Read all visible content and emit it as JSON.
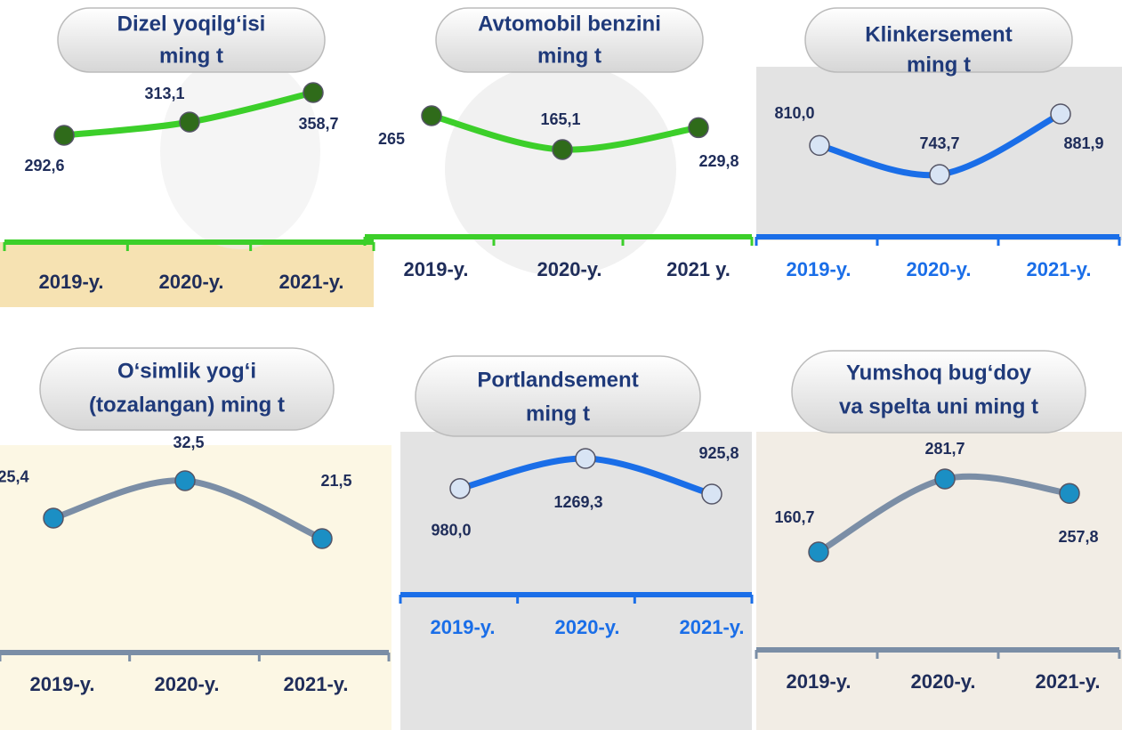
{
  "chart_data": [
    {
      "type": "line",
      "title": [
        "Dizel yoqilg‘isi",
        "ming t"
      ],
      "categories": [
        "2019-y.",
        "2020-y.",
        "2021-y."
      ],
      "values": [
        292.6,
        313.1,
        358.7
      ],
      "value_labels": [
        "292,6",
        "313,1",
        "358,7"
      ],
      "color": "#3ccf2a",
      "marker_color": "#2f6b1a",
      "category_color": "#1f2d5a"
    },
    {
      "type": "line",
      "title": [
        "Avtomobil benzini",
        "ming t"
      ],
      "categories": [
        "2019-y.",
        "2020-y.",
        "2021 y."
      ],
      "values": [
        265,
        165.1,
        229.8
      ],
      "value_labels": [
        "265",
        "165,1",
        "229,8"
      ],
      "color": "#3ccf2a",
      "marker_color": "#2f6b1a",
      "category_color": "#1f2d5a"
    },
    {
      "type": "line",
      "title": [
        "Klinkersement",
        "ming t"
      ],
      "categories": [
        "2019-y.",
        "2020-y.",
        "2021-y."
      ],
      "values": [
        810.0,
        743.7,
        881.9
      ],
      "value_labels": [
        "810,0",
        "743,7",
        "881,9"
      ],
      "color": "#1a6ee8",
      "marker_color": "#d8e4f4",
      "category_color": "#1a6ee8"
    },
    {
      "type": "line",
      "title": [
        "O‘simlik yog‘i",
        "(tozalangan) ming t"
      ],
      "categories": [
        "2019-y.",
        "2020-y.",
        "2021-y."
      ],
      "values": [
        25.4,
        32.5,
        21.5
      ],
      "value_labels": [
        "25,4",
        "32,5",
        "21,5"
      ],
      "color": "#7b8ea6",
      "marker_color": "#1b8fc4",
      "category_color": "#1f2d5a"
    },
    {
      "type": "line",
      "title": [
        "Portlandsement",
        "ming t"
      ],
      "categories": [
        "2019-y.",
        "2020-y.",
        "2021-y."
      ],
      "values": [
        980.0,
        1269.3,
        925.8
      ],
      "value_labels": [
        "980,0",
        "1269,3",
        "925,8"
      ],
      "color": "#1a6ee8",
      "marker_color": "#d8e4f4",
      "category_color": "#1a6ee8"
    },
    {
      "type": "line",
      "title": [
        "Yumshoq bug‘doy",
        "va spelta uni ming t"
      ],
      "categories": [
        "2019-y.",
        "2020-y.",
        "2021-y."
      ],
      "values": [
        160.7,
        281.7,
        257.8
      ],
      "value_labels": [
        "160,7",
        "281,7",
        "257,8"
      ],
      "color": "#7b8ea6",
      "marker_color": "#1b8fc4",
      "category_color": "#1f2d5a"
    }
  ]
}
